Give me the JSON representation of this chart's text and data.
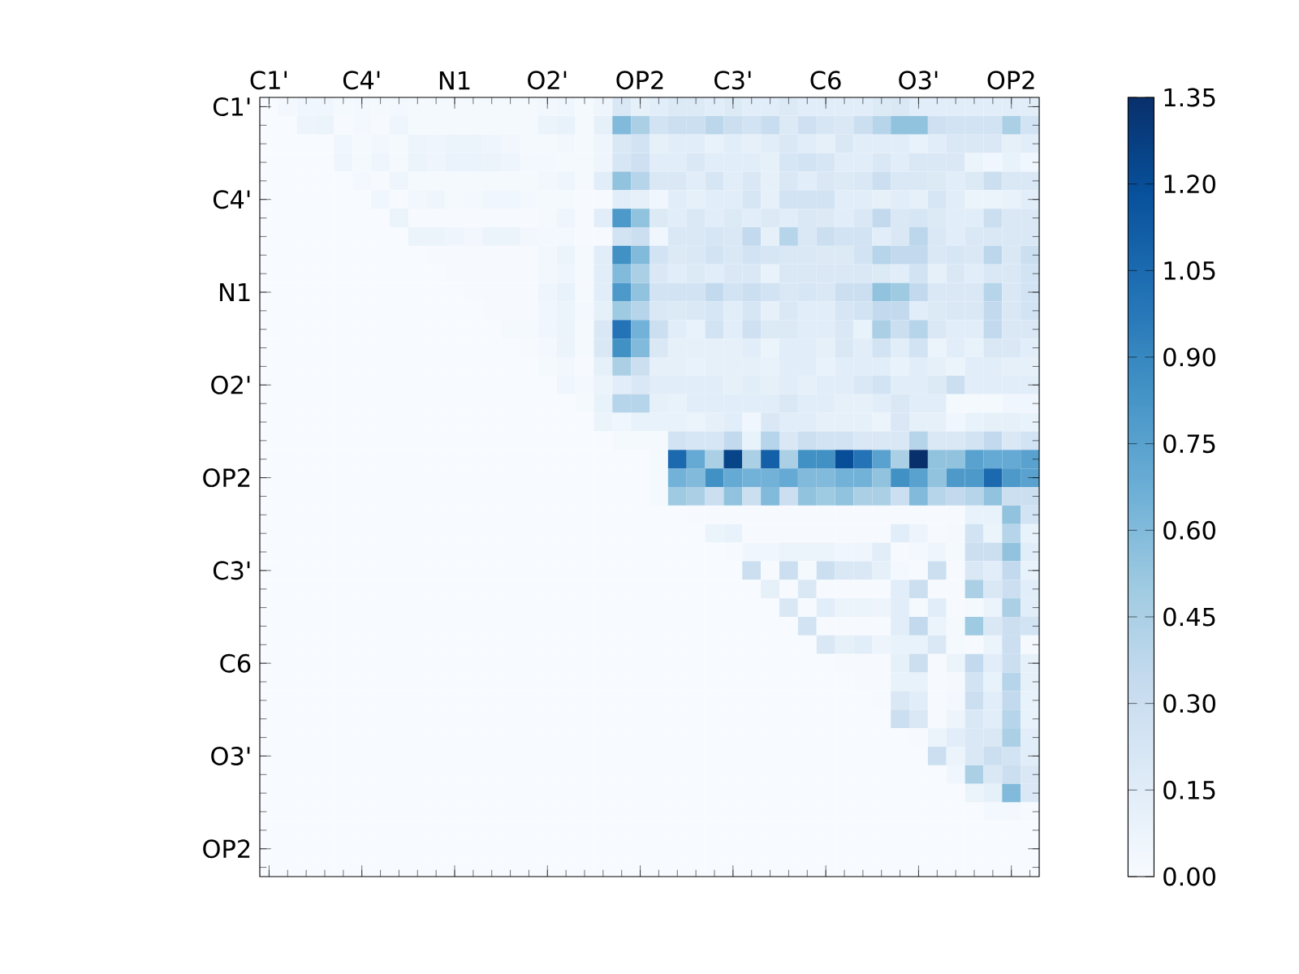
{
  "chart_data": {
    "type": "heatmap",
    "categories": [
      "C1'",
      null,
      null,
      null,
      null,
      "C4'",
      null,
      null,
      null,
      null,
      "N1",
      null,
      null,
      null,
      null,
      "O2'",
      null,
      null,
      null,
      null,
      "OP2",
      null,
      null,
      null,
      null,
      "C3'",
      null,
      null,
      null,
      null,
      "C6",
      null,
      null,
      null,
      null,
      "O3'",
      null,
      null,
      null,
      null,
      "OP2",
      null
    ],
    "y_categories": [
      "C1'",
      null,
      null,
      null,
      null,
      "C4'",
      null,
      null,
      null,
      null,
      "N1",
      null,
      null,
      null,
      null,
      "O2'",
      null,
      null,
      null,
      null,
      "OP2",
      null,
      null,
      null,
      null,
      "C3'",
      null,
      null,
      null,
      null,
      "C6",
      null,
      null,
      null,
      null,
      "O3'",
      null,
      null,
      null,
      null,
      "OP2",
      null
    ],
    "clim": [
      0,
      1.35
    ],
    "cticks": [
      {
        "value": 0,
        "label": "0.00"
      },
      {
        "value": 0.15,
        "label": "0.15"
      },
      {
        "value": 0.3,
        "label": "0.30"
      },
      {
        "value": 0.45,
        "label": "0.45"
      },
      {
        "value": 0.6,
        "label": "0.60"
      },
      {
        "value": 0.75,
        "label": "0.75"
      },
      {
        "value": 0.9,
        "label": "0.90"
      },
      {
        "value": 1.05,
        "label": "1.05"
      },
      {
        "value": 1.2,
        "label": "1.20"
      },
      {
        "value": 1.35,
        "label": "1.35"
      }
    ],
    "cells": [
      [
        0,
        0.03,
        0.05,
        0.05,
        0.02,
        0.03,
        0.02,
        0.03,
        0.02,
        0.02,
        0.02,
        0.02,
        0.02,
        0.02,
        0.02,
        0.04,
        0.05,
        0.02,
        0.06,
        0.2,
        0.12,
        0.15,
        0.18,
        0.18,
        0.15,
        0.18,
        0.15,
        0.15,
        0.18,
        0.15,
        0.15,
        0.15,
        0.15,
        0.18,
        0.2,
        0.15,
        0.15,
        0.15,
        0.15,
        0.15,
        0.15,
        0.15
      ],
      [
        0,
        0,
        0.07,
        0.08,
        0.01,
        0.03,
        0.01,
        0.06,
        0.02,
        0.02,
        0.02,
        0.02,
        0.02,
        0.02,
        0.02,
        0.08,
        0.1,
        0.02,
        0.12,
        0.6,
        0.45,
        0.25,
        0.3,
        0.3,
        0.38,
        0.3,
        0.25,
        0.32,
        0.18,
        0.28,
        0.22,
        0.2,
        0.3,
        0.4,
        0.55,
        0.55,
        0.28,
        0.25,
        0.25,
        0.25,
        0.45,
        0.25
      ],
      [
        0,
        0,
        0,
        0,
        0.05,
        0.02,
        0.04,
        0.02,
        0.07,
        0.06,
        0.08,
        0.08,
        0.06,
        0.04,
        0.02,
        0.02,
        0.04,
        0.02,
        0.06,
        0.2,
        0.25,
        0.12,
        0.15,
        0.15,
        0.1,
        0.15,
        0.12,
        0.15,
        0.2,
        0.15,
        0.12,
        0.2,
        0.15,
        0.15,
        0.15,
        0.1,
        0.15,
        0.2,
        0.2,
        0.2,
        0.12,
        0.15
      ],
      [
        0,
        0,
        0,
        0,
        0.06,
        0.02,
        0.06,
        0.02,
        0.08,
        0.06,
        0.09,
        0.09,
        0.08,
        0.06,
        0.03,
        0.03,
        0.02,
        0.02,
        0.06,
        0.22,
        0.28,
        0.15,
        0.15,
        0.2,
        0.15,
        0.15,
        0.15,
        0.12,
        0.22,
        0.25,
        0.22,
        0.15,
        0.15,
        0.2,
        0.15,
        0.2,
        0.2,
        0.2,
        0.08,
        0.05,
        0.1,
        0.05
      ],
      [
        0,
        0,
        0,
        0,
        0,
        0.03,
        0.01,
        0.06,
        0.02,
        0.02,
        0.02,
        0.02,
        0.02,
        0.02,
        0.02,
        0.04,
        0.06,
        0.02,
        0.15,
        0.55,
        0.4,
        0.2,
        0.2,
        0.15,
        0.22,
        0.15,
        0.2,
        0.12,
        0.2,
        0.15,
        0.2,
        0.18,
        0.2,
        0.3,
        0.2,
        0.2,
        0.18,
        0.15,
        0.18,
        0.3,
        0.2,
        0.2
      ],
      [
        0,
        0,
        0,
        0,
        0,
        0,
        0.05,
        0.01,
        0.04,
        0.06,
        0.02,
        0.03,
        0.05,
        0.05,
        0.03,
        0.02,
        0.02,
        0.01,
        0.01,
        0.15,
        0.12,
        0.05,
        0.15,
        0.12,
        0.15,
        0.15,
        0.22,
        0.12,
        0.25,
        0.25,
        0.25,
        0.15,
        0.15,
        0.12,
        0.15,
        0.12,
        0.22,
        0.15,
        0.08,
        0.08,
        0.1,
        0.15
      ],
      [
        0,
        0,
        0,
        0,
        0,
        0,
        0,
        0.08,
        0.01,
        0.01,
        0.01,
        0.01,
        0.01,
        0.01,
        0.01,
        0.02,
        0.06,
        0.01,
        0.15,
        0.8,
        0.55,
        0.18,
        0.15,
        0.2,
        0.15,
        0.18,
        0.15,
        0.18,
        0.15,
        0.2,
        0.18,
        0.15,
        0.2,
        0.35,
        0.2,
        0.22,
        0.18,
        0.15,
        0.15,
        0.3,
        0.2,
        0.2
      ],
      [
        0,
        0,
        0,
        0,
        0,
        0,
        0,
        0,
        0.08,
        0.08,
        0.06,
        0.04,
        0.08,
        0.08,
        0.04,
        0.03,
        0.03,
        0.01,
        0.01,
        0.25,
        0.3,
        0.05,
        0.2,
        0.2,
        0.22,
        0.2,
        0.35,
        0.12,
        0.4,
        0.2,
        0.3,
        0.25,
        0.25,
        0.15,
        0.2,
        0.38,
        0.2,
        0.15,
        0.2,
        0.2,
        0.2,
        0.2
      ],
      [
        0,
        0,
        0,
        0,
        0,
        0,
        0,
        0,
        0,
        0.01,
        0.01,
        0.01,
        0.01,
        0.01,
        0.01,
        0.04,
        0.08,
        0.02,
        0.15,
        0.85,
        0.6,
        0.25,
        0.18,
        0.2,
        0.25,
        0.2,
        0.25,
        0.22,
        0.2,
        0.2,
        0.18,
        0.18,
        0.25,
        0.4,
        0.35,
        0.35,
        0.2,
        0.22,
        0.2,
        0.38,
        0.2,
        0.3
      ],
      [
        0,
        0,
        0,
        0,
        0,
        0,
        0,
        0,
        0,
        0,
        0.01,
        0.01,
        0.01,
        0.01,
        0.01,
        0.04,
        0.06,
        0.02,
        0.15,
        0.6,
        0.45,
        0.2,
        0.15,
        0.18,
        0.15,
        0.2,
        0.2,
        0.1,
        0.2,
        0.2,
        0.2,
        0.2,
        0.2,
        0.18,
        0.15,
        0.25,
        0.12,
        0.2,
        0.15,
        0.2,
        0.2,
        0.25
      ],
      [
        0,
        0,
        0,
        0,
        0,
        0,
        0,
        0,
        0,
        0,
        0,
        0.01,
        0.01,
        0.01,
        0.01,
        0.06,
        0.1,
        0.02,
        0.15,
        0.8,
        0.55,
        0.25,
        0.25,
        0.25,
        0.35,
        0.25,
        0.3,
        0.25,
        0.2,
        0.22,
        0.2,
        0.3,
        0.3,
        0.55,
        0.5,
        0.35,
        0.2,
        0.2,
        0.2,
        0.4,
        0.2,
        0.25
      ],
      [
        0,
        0,
        0,
        0,
        0,
        0,
        0,
        0,
        0,
        0,
        0,
        0,
        0.01,
        0.01,
        0.01,
        0.05,
        0.08,
        0.03,
        0.12,
        0.5,
        0.4,
        0.2,
        0.18,
        0.2,
        0.22,
        0.15,
        0.22,
        0.12,
        0.2,
        0.15,
        0.15,
        0.22,
        0.25,
        0.35,
        0.35,
        0.15,
        0.18,
        0.2,
        0.2,
        0.35,
        0.2,
        0.25
      ],
      [
        0,
        0,
        0,
        0,
        0,
        0,
        0,
        0,
        0,
        0,
        0,
        0,
        0,
        0.02,
        0.02,
        0.05,
        0.08,
        0.02,
        0.2,
        1.0,
        0.65,
        0.3,
        0.15,
        0.1,
        0.25,
        0.15,
        0.28,
        0.18,
        0.18,
        0.15,
        0.15,
        0.2,
        0.1,
        0.45,
        0.3,
        0.4,
        0.2,
        0.15,
        0.15,
        0.35,
        0.2,
        0.2
      ],
      [
        0,
        0,
        0,
        0,
        0,
        0,
        0,
        0,
        0,
        0,
        0,
        0,
        0,
        0,
        0.01,
        0.03,
        0.08,
        0.02,
        0.2,
        0.85,
        0.6,
        0.2,
        0.12,
        0.12,
        0.12,
        0.12,
        0.15,
        0.08,
        0.15,
        0.15,
        0.12,
        0.2,
        0.15,
        0.25,
        0.15,
        0.25,
        0.08,
        0.15,
        0.1,
        0.2,
        0.2,
        0.15
      ],
      [
        0,
        0,
        0,
        0,
        0,
        0,
        0,
        0,
        0,
        0,
        0,
        0,
        0,
        0,
        0,
        0.02,
        0.04,
        0.01,
        0.12,
        0.45,
        0.3,
        0.12,
        0.12,
        0.1,
        0.12,
        0.12,
        0.12,
        0.1,
        0.15,
        0.15,
        0.1,
        0.15,
        0.15,
        0.15,
        0.1,
        0.15,
        0.12,
        0.08,
        0.15,
        0.15,
        0.12,
        0.12
      ],
      [
        0,
        0,
        0,
        0,
        0,
        0,
        0,
        0,
        0,
        0,
        0,
        0,
        0,
        0,
        0,
        0,
        0.05,
        0.03,
        0.08,
        0.15,
        0.2,
        0.15,
        0.15,
        0.15,
        0.15,
        0.12,
        0.15,
        0.12,
        0.15,
        0.12,
        0.15,
        0.15,
        0.2,
        0.25,
        0.15,
        0.15,
        0.18,
        0.3,
        0.15,
        0.15,
        0.15,
        0.15
      ],
      [
        0,
        0,
        0,
        0,
        0,
        0,
        0,
        0,
        0,
        0,
        0,
        0,
        0,
        0,
        0,
        0,
        0,
        0.02,
        0.1,
        0.4,
        0.4,
        0.12,
        0.1,
        0.15,
        0.15,
        0.15,
        0.15,
        0.15,
        0.2,
        0.15,
        0.15,
        0.12,
        0.12,
        0.15,
        0.2,
        0.15,
        0.15,
        0.02,
        0.02,
        0.02,
        0.05,
        0.05
      ],
      [
        0,
        0,
        0,
        0,
        0,
        0,
        0,
        0,
        0,
        0,
        0,
        0,
        0,
        0,
        0,
        0,
        0,
        0,
        0.08,
        0.05,
        0.1,
        0.1,
        0.1,
        0.08,
        0.12,
        0.15,
        0.05,
        0.2,
        0.15,
        0.15,
        0.12,
        0.12,
        0.12,
        0.08,
        0.2,
        0.12,
        0.12,
        0.05,
        0.1,
        0.12,
        0.12,
        0.1
      ],
      [
        0,
        0,
        0,
        0,
        0,
        0,
        0,
        0,
        0,
        0,
        0,
        0,
        0,
        0,
        0,
        0,
        0,
        0,
        0,
        0.02,
        0.02,
        0.02,
        0.25,
        0.22,
        0.22,
        0.35,
        0.1,
        0.4,
        0.2,
        0.3,
        0.25,
        0.25,
        0.2,
        0.2,
        0.2,
        0.4,
        0.2,
        0.2,
        0.25,
        0.35,
        0.2,
        0.25
      ],
      [
        0,
        0,
        0,
        0,
        0,
        0,
        0,
        0,
        0,
        0,
        0,
        0,
        0,
        0,
        0,
        0,
        0,
        0,
        0,
        0,
        0,
        0.02,
        1.05,
        0.7,
        0.45,
        1.25,
        0.45,
        1.1,
        0.45,
        0.85,
        0.85,
        1.2,
        1.0,
        0.75,
        0.45,
        1.35,
        0.55,
        0.55,
        0.75,
        0.7,
        0.7,
        0.75
      ],
      [
        0,
        0,
        0,
        0,
        0,
        0,
        0,
        0,
        0,
        0,
        0,
        0,
        0,
        0,
        0,
        0,
        0,
        0,
        0,
        0,
        0,
        0.02,
        0.65,
        0.6,
        0.85,
        0.7,
        0.65,
        0.65,
        0.7,
        0.6,
        0.6,
        0.65,
        0.65,
        0.55,
        0.85,
        0.75,
        0.55,
        0.8,
        0.8,
        1.05,
        0.8,
        0.75
      ],
      [
        0,
        0,
        0,
        0,
        0,
        0,
        0,
        0,
        0,
        0,
        0,
        0,
        0,
        0,
        0,
        0,
        0,
        0,
        0,
        0,
        0,
        0.02,
        0.5,
        0.45,
        0.3,
        0.55,
        0.3,
        0.6,
        0.3,
        0.55,
        0.5,
        0.55,
        0.45,
        0.45,
        0.3,
        0.6,
        0.4,
        0.35,
        0.4,
        0.55,
        0.3,
        0.3
      ],
      [
        0,
        0,
        0,
        0,
        0,
        0,
        0,
        0,
        0,
        0,
        0,
        0,
        0,
        0,
        0,
        0,
        0,
        0,
        0,
        0,
        0,
        0,
        0,
        0.01,
        0.01,
        0.01,
        0.01,
        0.01,
        0.01,
        0.01,
        0.01,
        0.01,
        0.01,
        0.01,
        0.01,
        0.01,
        0.01,
        0.01,
        0.1,
        0.1,
        0.55,
        0.25
      ],
      [
        0,
        0,
        0,
        0,
        0,
        0,
        0,
        0,
        0,
        0,
        0,
        0,
        0,
        0,
        0,
        0,
        0,
        0,
        0,
        0,
        0,
        0,
        0,
        0,
        0.08,
        0.1,
        0.01,
        0.01,
        0.01,
        0.01,
        0.01,
        0.01,
        0.01,
        0.01,
        0.15,
        0.07,
        0.01,
        0.02,
        0.25,
        0.08,
        0.4,
        0.1
      ],
      [
        0,
        0,
        0,
        0,
        0,
        0,
        0,
        0,
        0,
        0,
        0,
        0,
        0,
        0,
        0,
        0,
        0,
        0,
        0,
        0,
        0,
        0,
        0,
        0,
        0,
        0.01,
        0.05,
        0.05,
        0.08,
        0.08,
        0.08,
        0.05,
        0.06,
        0.15,
        0.01,
        0.03,
        0.06,
        0.02,
        0.3,
        0.3,
        0.55,
        0.15
      ],
      [
        0,
        0,
        0,
        0,
        0,
        0,
        0,
        0,
        0,
        0,
        0,
        0,
        0,
        0,
        0,
        0,
        0,
        0,
        0,
        0,
        0,
        0,
        0,
        0,
        0,
        0,
        0.3,
        0.01,
        0.3,
        0.02,
        0.3,
        0.2,
        0.2,
        0.12,
        0.03,
        0.01,
        0.3,
        0.01,
        0.2,
        0.15,
        0.35,
        0.1
      ],
      [
        0,
        0,
        0,
        0,
        0,
        0,
        0,
        0,
        0,
        0,
        0,
        0,
        0,
        0,
        0,
        0,
        0,
        0,
        0,
        0,
        0,
        0,
        0,
        0,
        0,
        0,
        0,
        0.12,
        0.01,
        0.2,
        0.01,
        0.01,
        0.01,
        0.01,
        0.15,
        0.3,
        0.01,
        0.01,
        0.45,
        0.2,
        0.3,
        0.15
      ],
      [
        0,
        0,
        0,
        0,
        0,
        0,
        0,
        0,
        0,
        0,
        0,
        0,
        0,
        0,
        0,
        0,
        0,
        0,
        0,
        0,
        0,
        0,
        0,
        0,
        0,
        0,
        0,
        0,
        0.2,
        0.01,
        0.15,
        0.08,
        0.08,
        0.07,
        0.15,
        0.02,
        0.15,
        0.01,
        0.02,
        0.08,
        0.45,
        0.15
      ],
      [
        0,
        0,
        0,
        0,
        0,
        0,
        0,
        0,
        0,
        0,
        0,
        0,
        0,
        0,
        0,
        0,
        0,
        0,
        0,
        0,
        0,
        0,
        0,
        0,
        0,
        0,
        0,
        0,
        0,
        0.25,
        0.01,
        0.01,
        0.01,
        0.01,
        0.15,
        0.35,
        0.08,
        0.02,
        0.5,
        0.2,
        0.3,
        0.25
      ],
      [
        0,
        0,
        0,
        0,
        0,
        0,
        0,
        0,
        0,
        0,
        0,
        0,
        0,
        0,
        0,
        0,
        0,
        0,
        0,
        0,
        0,
        0,
        0,
        0,
        0,
        0,
        0,
        0,
        0,
        0,
        0.2,
        0.12,
        0.15,
        0.07,
        0.1,
        0.1,
        0.2,
        0.02,
        0.01,
        0.08,
        0.3,
        0.02
      ],
      [
        0,
        0,
        0,
        0,
        0,
        0,
        0,
        0,
        0,
        0,
        0,
        0,
        0,
        0,
        0,
        0,
        0,
        0,
        0,
        0,
        0,
        0,
        0,
        0,
        0,
        0,
        0,
        0,
        0,
        0,
        0,
        0.01,
        0.01,
        0.01,
        0.12,
        0.3,
        0.01,
        0.08,
        0.35,
        0.15,
        0.3,
        0.12
      ],
      [
        0,
        0,
        0,
        0,
        0,
        0,
        0,
        0,
        0,
        0,
        0,
        0,
        0,
        0,
        0,
        0,
        0,
        0,
        0,
        0,
        0,
        0,
        0,
        0,
        0,
        0,
        0,
        0,
        0,
        0,
        0,
        0,
        0.01,
        0.01,
        0.1,
        0.1,
        0.01,
        0.02,
        0.25,
        0.1,
        0.4,
        0.12
      ],
      [
        0,
        0,
        0,
        0,
        0,
        0,
        0,
        0,
        0,
        0,
        0,
        0,
        0,
        0,
        0,
        0,
        0,
        0,
        0,
        0,
        0,
        0,
        0,
        0,
        0,
        0,
        0,
        0,
        0,
        0,
        0,
        0,
        0,
        0.01,
        0.2,
        0.15,
        0.01,
        0.03,
        0.3,
        0.15,
        0.35,
        0.1
      ],
      [
        0,
        0,
        0,
        0,
        0,
        0,
        0,
        0,
        0,
        0,
        0,
        0,
        0,
        0,
        0,
        0,
        0,
        0,
        0,
        0,
        0,
        0,
        0,
        0,
        0,
        0,
        0,
        0,
        0,
        0,
        0,
        0,
        0,
        0,
        0.3,
        0.2,
        0.01,
        0.07,
        0.2,
        0.15,
        0.4,
        0.1
      ],
      [
        0,
        0,
        0,
        0,
        0,
        0,
        0,
        0,
        0,
        0,
        0,
        0,
        0,
        0,
        0,
        0,
        0,
        0,
        0,
        0,
        0,
        0,
        0,
        0,
        0,
        0,
        0,
        0,
        0,
        0,
        0,
        0,
        0,
        0,
        0,
        0.01,
        0.08,
        0.15,
        0.2,
        0.2,
        0.45,
        0.15
      ],
      [
        0,
        0,
        0,
        0,
        0,
        0,
        0,
        0,
        0,
        0,
        0,
        0,
        0,
        0,
        0,
        0,
        0,
        0,
        0,
        0,
        0,
        0,
        0,
        0,
        0,
        0,
        0,
        0,
        0,
        0,
        0,
        0,
        0,
        0,
        0,
        0,
        0.3,
        0.08,
        0.2,
        0.3,
        0.25,
        0.15
      ],
      [
        0,
        0,
        0,
        0,
        0,
        0,
        0,
        0,
        0,
        0,
        0,
        0,
        0,
        0,
        0,
        0,
        0,
        0,
        0,
        0,
        0,
        0,
        0,
        0,
        0,
        0,
        0,
        0,
        0,
        0,
        0,
        0,
        0,
        0,
        0,
        0,
        0,
        0.05,
        0.45,
        0.2,
        0.3,
        0.2
      ],
      [
        0,
        0,
        0,
        0,
        0,
        0,
        0,
        0,
        0,
        0,
        0,
        0,
        0,
        0,
        0,
        0,
        0,
        0,
        0,
        0,
        0,
        0,
        0,
        0,
        0,
        0,
        0,
        0,
        0,
        0,
        0,
        0,
        0,
        0,
        0,
        0,
        0,
        0,
        0.08,
        0.12,
        0.6,
        0.2
      ],
      [
        0,
        0,
        0,
        0,
        0,
        0,
        0,
        0,
        0,
        0,
        0,
        0,
        0,
        0,
        0,
        0,
        0,
        0,
        0,
        0,
        0,
        0,
        0,
        0,
        0,
        0,
        0,
        0,
        0,
        0,
        0,
        0,
        0,
        0,
        0,
        0,
        0,
        0,
        0,
        0.03,
        0.03,
        0.01
      ],
      [
        0,
        0,
        0,
        0,
        0,
        0,
        0,
        0,
        0,
        0,
        0,
        0,
        0,
        0,
        0,
        0,
        0,
        0,
        0,
        0,
        0,
        0,
        0,
        0,
        0,
        0,
        0,
        0,
        0,
        0,
        0,
        0,
        0,
        0,
        0,
        0,
        0,
        0,
        0,
        0,
        0,
        0
      ],
      [
        0,
        0,
        0,
        0,
        0,
        0,
        0,
        0,
        0,
        0,
        0,
        0,
        0,
        0,
        0,
        0,
        0,
        0,
        0,
        0,
        0,
        0,
        0,
        0,
        0,
        0,
        0,
        0,
        0,
        0,
        0,
        0,
        0,
        0,
        0,
        0,
        0,
        0,
        0,
        0,
        0,
        0
      ],
      [
        0,
        0,
        0,
        0,
        0,
        0,
        0,
        0,
        0,
        0,
        0,
        0,
        0,
        0,
        0,
        0,
        0,
        0,
        0,
        0,
        0,
        0,
        0,
        0,
        0,
        0,
        0,
        0,
        0,
        0,
        0,
        0,
        0,
        0,
        0,
        0,
        0,
        0,
        0,
        0,
        0,
        0
      ]
    ]
  }
}
